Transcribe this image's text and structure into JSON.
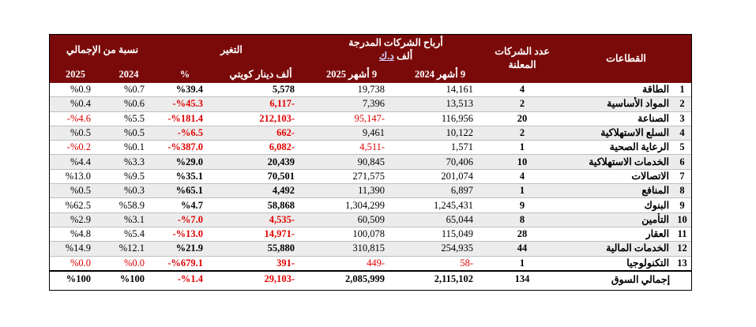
{
  "header": {
    "sectors": "القطاعات",
    "companies_count": "عدد الشركات المعلنة",
    "profits_title": "أرباح الشركات المدرجة",
    "profits_unit_prefix": "ألف ",
    "profits_unit_link": "د.ك",
    "profits_2024": "9 أشهر 2024",
    "profits_2025": "9 أشهر 2025",
    "change_title": "التغير",
    "change_value": "ألف دينار كويتي",
    "change_pct": "%",
    "share_title": "نسبة من الإجمالي",
    "share_2024": "2024",
    "share_2025": "2025"
  },
  "rows": [
    {
      "no": "1",
      "sector": "الطاقة",
      "count": "4",
      "p2024": "14,161",
      "p2025": "19,738",
      "chg": "5,578",
      "chg_pct": "%39.4",
      "s2024": "%0.7",
      "s2025": "%0.9",
      "neg_p2025": false,
      "neg_chg": false,
      "neg_s2025": false
    },
    {
      "no": "2",
      "sector": "المواد الأساسية",
      "count": "2",
      "p2024": "13,513",
      "p2025": "7,396",
      "chg": "-6,117",
      "chg_pct": "%45.3-",
      "s2024": "%0.6",
      "s2025": "%0.4",
      "neg_p2025": false,
      "neg_chg": true,
      "neg_s2025": false
    },
    {
      "no": "3",
      "sector": "الصناعة",
      "count": "20",
      "p2024": "116,956",
      "p2025": "-95,147",
      "chg": "-212,103",
      "chg_pct": "%181.4-",
      "s2024": "%5.5",
      "s2025": "%4.6-",
      "neg_p2025": true,
      "neg_chg": true,
      "neg_s2025": true
    },
    {
      "no": "4",
      "sector": "السلع الاستهلاكية",
      "count": "2",
      "p2024": "10,122",
      "p2025": "9,461",
      "chg": "-662",
      "chg_pct": "%6.5-",
      "s2024": "%0.5",
      "s2025": "%0.5",
      "neg_p2025": false,
      "neg_chg": true,
      "neg_s2025": false
    },
    {
      "no": "5",
      "sector": "الرعاية الصحية",
      "count": "1",
      "p2024": "1,571",
      "p2025": "-4,511",
      "chg": "-6,082",
      "chg_pct": "%387.0-",
      "s2024": "%0.1",
      "s2025": "%0.2-",
      "neg_p2025": true,
      "neg_chg": true,
      "neg_s2025": true
    },
    {
      "no": "6",
      "sector": "الخدمات الاستهلاكية",
      "count": "10",
      "p2024": "70,406",
      "p2025": "90,845",
      "chg": "20,439",
      "chg_pct": "%29.0",
      "s2024": "%3.3",
      "s2025": "%4.4",
      "neg_p2025": false,
      "neg_chg": false,
      "neg_s2025": false
    },
    {
      "no": "7",
      "sector": "الاتصالات",
      "count": "4",
      "p2024": "201,074",
      "p2025": "271,575",
      "chg": "70,501",
      "chg_pct": "%35.1",
      "s2024": "%9.5",
      "s2025": "%13.0",
      "neg_p2025": false,
      "neg_chg": false,
      "neg_s2025": false
    },
    {
      "no": "8",
      "sector": "المنافع",
      "count": "1",
      "p2024": "6,897",
      "p2025": "11,390",
      "chg": "4,492",
      "chg_pct": "%65.1",
      "s2024": "%0.3",
      "s2025": "%0.5",
      "neg_p2025": false,
      "neg_chg": false,
      "neg_s2025": false
    },
    {
      "no": "9",
      "sector": "البنوك",
      "count": "9",
      "p2024": "1,245,431",
      "p2025": "1,304,299",
      "chg": "58,868",
      "chg_pct": "%4.7",
      "s2024": "%58.9",
      "s2025": "%62.5",
      "neg_p2025": false,
      "neg_chg": false,
      "neg_s2025": false
    },
    {
      "no": "10",
      "sector": "التأمين",
      "count": "8",
      "p2024": "65,044",
      "p2025": "60,509",
      "chg": "-4,535",
      "chg_pct": "%7.0-",
      "s2024": "%3.1",
      "s2025": "%2.9",
      "neg_p2025": false,
      "neg_chg": true,
      "neg_s2025": false
    },
    {
      "no": "11",
      "sector": "العقار",
      "count": "28",
      "p2024": "115,049",
      "p2025": "100,078",
      "chg": "-14,971",
      "chg_pct": "%13.0-",
      "s2024": "%5.4",
      "s2025": "%4.8",
      "neg_p2025": false,
      "neg_chg": true,
      "neg_s2025": false
    },
    {
      "no": "12",
      "sector": "الخدمات المالية",
      "count": "44",
      "p2024": "254,935",
      "p2025": "310,815",
      "chg": "55,880",
      "chg_pct": "%21.9",
      "s2024": "%12.1",
      "s2025": "%14.9",
      "neg_p2025": false,
      "neg_chg": false,
      "neg_s2025": false
    },
    {
      "no": "13",
      "sector": "التكنولوجيا",
      "count": "1",
      "p2024": "-58",
      "p2025": "-449",
      "chg": "-391",
      "chg_pct": "%679.1-",
      "s2024": "%0.0",
      "s2025": "%0.0",
      "neg_p2025": true,
      "neg_chg": true,
      "neg_s2025": true,
      "neg_p2024": true,
      "neg_s2024": true
    }
  ],
  "total": {
    "label": "إجمالي السوق",
    "count": "134",
    "p2024": "2,115,102",
    "p2025": "2,085,999",
    "chg": "-29,103",
    "chg_pct": "%1.4-",
    "s2024": "%100",
    "s2025": "%100"
  },
  "colors": {
    "header_bg": "#7a0a0a",
    "negative": "#e00000",
    "zebra": "#ececec"
  }
}
